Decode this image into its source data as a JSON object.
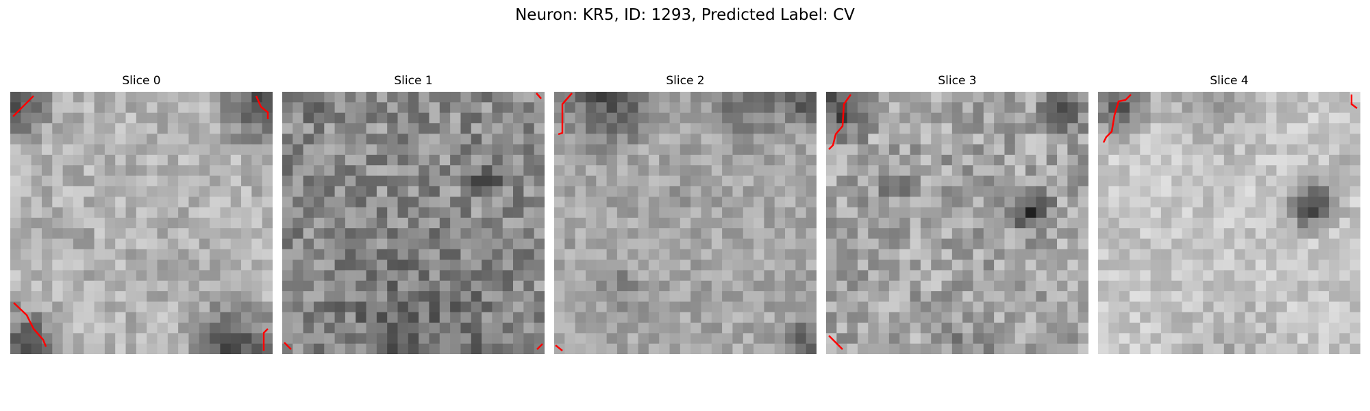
{
  "figure": {
    "title": "Neuron: KR5, ID: 1293, Predicted Label: CV"
  },
  "colors": {
    "contour": "#ff0000",
    "background": "#ffffff",
    "colormap": "grayscale"
  },
  "slices": [
    {
      "title": "Slice 0"
    },
    {
      "title": "Slice 1"
    },
    {
      "title": "Slice 2"
    },
    {
      "title": "Slice 3"
    },
    {
      "title": "Slice 4"
    }
  ]
}
